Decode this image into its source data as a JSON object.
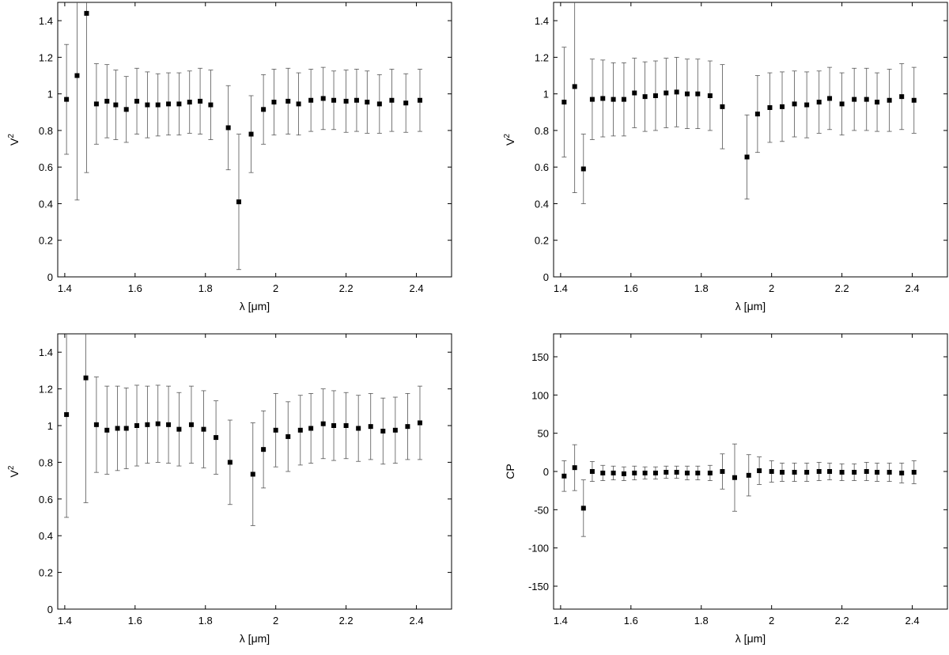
{
  "chart_data": [
    {
      "type": "scatter",
      "xlabel": "λ [μm]",
      "ylabel": "V",
      "ylabel_superscript": "2",
      "xlim": [
        1.38,
        2.5
      ],
      "ylim": [
        0,
        1.5
      ],
      "xticks": [
        1.4,
        1.6,
        1.8,
        2,
        2.2,
        2.4
      ],
      "yticks": [
        0,
        0.2,
        0.4,
        0.6,
        0.8,
        1,
        1.2,
        1.4
      ],
      "xtick_labels": [
        "1.4",
        "1.6",
        "1.8",
        "2",
        "2.2",
        "2.4"
      ],
      "ytick_labels": [
        "0",
        "0.2",
        "0.4",
        "0.6",
        "0.8",
        "1",
        "1.2",
        "1.4"
      ],
      "grid": false,
      "series": [
        {
          "points": [
            {
              "x": 1.405,
              "y": 0.97,
              "err": 0.3
            },
            {
              "x": 1.435,
              "y": 1.1,
              "err": 0.68
            },
            {
              "x": 1.462,
              "y": 1.44,
              "err": 0.87
            },
            {
              "x": 1.49,
              "y": 0.945,
              "err": 0.22
            },
            {
              "x": 1.52,
              "y": 0.96,
              "err": 0.2
            },
            {
              "x": 1.545,
              "y": 0.94,
              "err": 0.19
            },
            {
              "x": 1.575,
              "y": 0.915,
              "err": 0.18
            },
            {
              "x": 1.605,
              "y": 0.96,
              "err": 0.18
            },
            {
              "x": 1.635,
              "y": 0.94,
              "err": 0.18
            },
            {
              "x": 1.665,
              "y": 0.94,
              "err": 0.17
            },
            {
              "x": 1.695,
              "y": 0.945,
              "err": 0.17
            },
            {
              "x": 1.725,
              "y": 0.945,
              "err": 0.17
            },
            {
              "x": 1.755,
              "y": 0.955,
              "err": 0.17
            },
            {
              "x": 1.785,
              "y": 0.96,
              "err": 0.18
            },
            {
              "x": 1.815,
              "y": 0.94,
              "err": 0.19
            },
            {
              "x": 1.865,
              "y": 0.815,
              "err": 0.23
            },
            {
              "x": 1.895,
              "y": 0.41,
              "err": 0.37
            },
            {
              "x": 1.93,
              "y": 0.78,
              "err": 0.21
            },
            {
              "x": 1.965,
              "y": 0.915,
              "err": 0.19
            },
            {
              "x": 1.995,
              "y": 0.955,
              "err": 0.18
            },
            {
              "x": 2.035,
              "y": 0.96,
              "err": 0.18
            },
            {
              "x": 2.065,
              "y": 0.945,
              "err": 0.17
            },
            {
              "x": 2.1,
              "y": 0.965,
              "err": 0.17
            },
            {
              "x": 2.135,
              "y": 0.975,
              "err": 0.17
            },
            {
              "x": 2.165,
              "y": 0.965,
              "err": 0.16
            },
            {
              "x": 2.2,
              "y": 0.96,
              "err": 0.17
            },
            {
              "x": 2.23,
              "y": 0.965,
              "err": 0.17
            },
            {
              "x": 2.26,
              "y": 0.955,
              "err": 0.17
            },
            {
              "x": 2.295,
              "y": 0.945,
              "err": 0.16
            },
            {
              "x": 2.33,
              "y": 0.965,
              "err": 0.17
            },
            {
              "x": 2.37,
              "y": 0.95,
              "err": 0.16
            },
            {
              "x": 2.41,
              "y": 0.965,
              "err": 0.17
            }
          ]
        }
      ]
    },
    {
      "type": "scatter",
      "xlabel": "λ [μm]",
      "ylabel": "V",
      "ylabel_superscript": "2",
      "xlim": [
        1.38,
        2.5
      ],
      "ylim": [
        0,
        1.5
      ],
      "xticks": [
        1.4,
        1.6,
        1.8,
        2,
        2.2,
        2.4
      ],
      "yticks": [
        0,
        0.2,
        0.4,
        0.6,
        0.8,
        1,
        1.2,
        1.4
      ],
      "xtick_labels": [
        "1.4",
        "1.6",
        "1.8",
        "2",
        "2.2",
        "2.4"
      ],
      "ytick_labels": [
        "0",
        "0.2",
        "0.4",
        "0.6",
        "0.8",
        "1",
        "1.2",
        "1.4"
      ],
      "grid": false,
      "series": [
        {
          "points": [
            {
              "x": 1.41,
              "y": 0.955,
              "err": 0.3
            },
            {
              "x": 1.44,
              "y": 1.04,
              "err": 0.58
            },
            {
              "x": 1.465,
              "y": 0.59,
              "err": 0.19
            },
            {
              "x": 1.49,
              "y": 0.97,
              "err": 0.22
            },
            {
              "x": 1.52,
              "y": 0.975,
              "err": 0.21
            },
            {
              "x": 1.55,
              "y": 0.97,
              "err": 0.2
            },
            {
              "x": 1.58,
              "y": 0.97,
              "err": 0.2
            },
            {
              "x": 1.61,
              "y": 1.005,
              "err": 0.19
            },
            {
              "x": 1.64,
              "y": 0.985,
              "err": 0.19
            },
            {
              "x": 1.67,
              "y": 0.99,
              "err": 0.19
            },
            {
              "x": 1.7,
              "y": 1.005,
              "err": 0.19
            },
            {
              "x": 1.73,
              "y": 1.01,
              "err": 0.19
            },
            {
              "x": 1.76,
              "y": 1.0,
              "err": 0.19
            },
            {
              "x": 1.79,
              "y": 1.0,
              "err": 0.19
            },
            {
              "x": 1.825,
              "y": 0.99,
              "err": 0.19
            },
            {
              "x": 1.86,
              "y": 0.93,
              "err": 0.23
            },
            {
              "x": 1.93,
              "y": 0.655,
              "err": 0.23
            },
            {
              "x": 1.96,
              "y": 0.89,
              "err": 0.21
            },
            {
              "x": 1.995,
              "y": 0.925,
              "err": 0.19
            },
            {
              "x": 2.03,
              "y": 0.93,
              "err": 0.19
            },
            {
              "x": 2.065,
              "y": 0.945,
              "err": 0.18
            },
            {
              "x": 2.1,
              "y": 0.94,
              "err": 0.18
            },
            {
              "x": 2.135,
              "y": 0.955,
              "err": 0.17
            },
            {
              "x": 2.165,
              "y": 0.975,
              "err": 0.17
            },
            {
              "x": 2.2,
              "y": 0.945,
              "err": 0.17
            },
            {
              "x": 2.235,
              "y": 0.97,
              "err": 0.17
            },
            {
              "x": 2.27,
              "y": 0.97,
              "err": 0.17
            },
            {
              "x": 2.3,
              "y": 0.955,
              "err": 0.16
            },
            {
              "x": 2.335,
              "y": 0.965,
              "err": 0.17
            },
            {
              "x": 2.37,
              "y": 0.985,
              "err": 0.18
            },
            {
              "x": 2.405,
              "y": 0.965,
              "err": 0.18
            }
          ]
        }
      ]
    },
    {
      "type": "scatter",
      "xlabel": "λ [μm]",
      "ylabel": "V",
      "ylabel_superscript": "2",
      "xlim": [
        1.38,
        2.5
      ],
      "ylim": [
        0,
        1.5
      ],
      "xticks": [
        1.4,
        1.6,
        1.8,
        2,
        2.2,
        2.4
      ],
      "yticks": [
        0,
        0.2,
        0.4,
        0.6,
        0.8,
        1,
        1.2,
        1.4
      ],
      "xtick_labels": [
        "1.4",
        "1.6",
        "1.8",
        "2",
        "2.2",
        "2.4"
      ],
      "ytick_labels": [
        "0",
        "0.2",
        "0.4",
        "0.6",
        "0.8",
        "1",
        "1.2",
        "1.4"
      ],
      "grid": false,
      "series": [
        {
          "points": [
            {
              "x": 1.405,
              "y": 1.06,
              "err": 0.56
            },
            {
              "x": 1.46,
              "y": 1.26,
              "err": 0.68
            },
            {
              "x": 1.49,
              "y": 1.005,
              "err": 0.26
            },
            {
              "x": 1.52,
              "y": 0.975,
              "err": 0.24
            },
            {
              "x": 1.55,
              "y": 0.985,
              "err": 0.23
            },
            {
              "x": 1.575,
              "y": 0.985,
              "err": 0.22
            },
            {
              "x": 1.605,
              "y": 1.0,
              "err": 0.22
            },
            {
              "x": 1.635,
              "y": 1.005,
              "err": 0.21
            },
            {
              "x": 1.665,
              "y": 1.01,
              "err": 0.21
            },
            {
              "x": 1.695,
              "y": 1.005,
              "err": 0.21
            },
            {
              "x": 1.725,
              "y": 0.98,
              "err": 0.2
            },
            {
              "x": 1.76,
              "y": 1.005,
              "err": 0.21
            },
            {
              "x": 1.795,
              "y": 0.98,
              "err": 0.21
            },
            {
              "x": 1.83,
              "y": 0.935,
              "err": 0.2
            },
            {
              "x": 1.87,
              "y": 0.8,
              "err": 0.23
            },
            {
              "x": 1.935,
              "y": 0.735,
              "err": 0.28
            },
            {
              "x": 1.965,
              "y": 0.87,
              "err": 0.21
            },
            {
              "x": 2.0,
              "y": 0.975,
              "err": 0.2
            },
            {
              "x": 2.035,
              "y": 0.94,
              "err": 0.19
            },
            {
              "x": 2.07,
              "y": 0.975,
              "err": 0.19
            },
            {
              "x": 2.1,
              "y": 0.985,
              "err": 0.19
            },
            {
              "x": 2.135,
              "y": 1.01,
              "err": 0.19
            },
            {
              "x": 2.165,
              "y": 1.0,
              "err": 0.19
            },
            {
              "x": 2.2,
              "y": 1.0,
              "err": 0.18
            },
            {
              "x": 2.235,
              "y": 0.985,
              "err": 0.18
            },
            {
              "x": 2.27,
              "y": 0.995,
              "err": 0.18
            },
            {
              "x": 2.305,
              "y": 0.97,
              "err": 0.18
            },
            {
              "x": 2.34,
              "y": 0.975,
              "err": 0.18
            },
            {
              "x": 2.375,
              "y": 0.995,
              "err": 0.18
            },
            {
              "x": 2.41,
              "y": 1.015,
              "err": 0.2
            }
          ]
        }
      ]
    },
    {
      "type": "scatter",
      "xlabel": "λ [μm]",
      "ylabel": "CP",
      "ylabel_superscript": "",
      "xlim": [
        1.38,
        2.5
      ],
      "ylim": [
        -180,
        180
      ],
      "xticks": [
        1.4,
        1.6,
        1.8,
        2,
        2.2,
        2.4
      ],
      "yticks": [
        -150,
        -100,
        -50,
        0,
        50,
        100,
        150
      ],
      "xtick_labels": [
        "1.4",
        "1.6",
        "1.8",
        "2",
        "2.2",
        "2.4"
      ],
      "ytick_labels": [
        "-150",
        "-100",
        "-50",
        "0",
        "50",
        "100",
        "150"
      ],
      "grid": false,
      "series": [
        {
          "points": [
            {
              "x": 1.41,
              "y": -6,
              "err": 20
            },
            {
              "x": 1.44,
              "y": 5,
              "err": 30
            },
            {
              "x": 1.465,
              "y": -48,
              "err": 37
            },
            {
              "x": 1.49,
              "y": 0,
              "err": 13
            },
            {
              "x": 1.52,
              "y": -2,
              "err": 10
            },
            {
              "x": 1.55,
              "y": -2,
              "err": 9
            },
            {
              "x": 1.58,
              "y": -3,
              "err": 9
            },
            {
              "x": 1.61,
              "y": -2,
              "err": 9
            },
            {
              "x": 1.64,
              "y": -2,
              "err": 8
            },
            {
              "x": 1.67,
              "y": -2,
              "err": 8
            },
            {
              "x": 1.7,
              "y": -1,
              "err": 8
            },
            {
              "x": 1.73,
              "y": -1,
              "err": 8
            },
            {
              "x": 1.76,
              "y": -2,
              "err": 9
            },
            {
              "x": 1.79,
              "y": -2,
              "err": 9
            },
            {
              "x": 1.825,
              "y": -2,
              "err": 10
            },
            {
              "x": 1.86,
              "y": 0,
              "err": 23
            },
            {
              "x": 1.895,
              "y": -8,
              "err": 44
            },
            {
              "x": 1.935,
              "y": -5,
              "err": 27
            },
            {
              "x": 1.965,
              "y": 1,
              "err": 18
            },
            {
              "x": 2.0,
              "y": 0,
              "err": 14
            },
            {
              "x": 2.03,
              "y": -1,
              "err": 12
            },
            {
              "x": 2.065,
              "y": -1,
              "err": 12
            },
            {
              "x": 2.1,
              "y": -1,
              "err": 12
            },
            {
              "x": 2.135,
              "y": 0,
              "err": 12
            },
            {
              "x": 2.165,
              "y": 0,
              "err": 11
            },
            {
              "x": 2.2,
              "y": -1,
              "err": 11
            },
            {
              "x": 2.235,
              "y": -1,
              "err": 11
            },
            {
              "x": 2.27,
              "y": 0,
              "err": 12
            },
            {
              "x": 2.3,
              "y": -1,
              "err": 12
            },
            {
              "x": 2.335,
              "y": -1,
              "err": 12
            },
            {
              "x": 2.37,
              "y": -2,
              "err": 13
            },
            {
              "x": 2.405,
              "y": -1,
              "err": 15
            }
          ]
        }
      ]
    }
  ]
}
